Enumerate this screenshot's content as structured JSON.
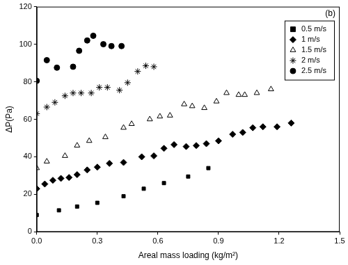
{
  "chart_data": {
    "type": "scatter",
    "annotation": "(b)",
    "x_label": "Areal mass loading (kg/m²)",
    "y_label": "ΔP(Pa)",
    "xlim": [
      0,
      1.5
    ],
    "xticks": [
      {
        "value": 0,
        "label": "0.0"
      },
      0.3,
      0.6,
      0.9,
      1.2,
      1.5
    ],
    "ylim": [
      0,
      120
    ],
    "yticks": [
      0,
      20,
      40,
      60,
      80,
      100,
      120
    ],
    "grid": false,
    "legend": "upper right",
    "series": [
      {
        "name": "0.5 m/s",
        "color": "#000000",
        "marker": "square",
        "x": [
          0.0,
          0.11,
          0.2,
          0.3,
          0.43,
          0.53,
          0.63,
          0.75,
          0.85
        ],
        "values": [
          9,
          11.5,
          13.5,
          15.5,
          19,
          23,
          26,
          29.5,
          34
        ]
      },
      {
        "name": "1 m/s",
        "color": "#000000",
        "marker": "diamond",
        "x": [
          0.0,
          0.04,
          0.08,
          0.12,
          0.16,
          0.2,
          0.25,
          0.3,
          0.36,
          0.43,
          0.52,
          0.58,
          0.63,
          0.68,
          0.74,
          0.79,
          0.84,
          0.9,
          0.97,
          1.02,
          1.07,
          1.12,
          1.19,
          1.26
        ],
        "values": [
          23,
          25.5,
          27.5,
          28.5,
          29,
          30.5,
          33,
          34.5,
          36.5,
          37,
          40,
          40.5,
          44.5,
          46.5,
          45.5,
          46,
          47,
          48.5,
          52,
          53,
          55.5,
          56,
          56,
          58
        ]
      },
      {
        "name": "1.5 m/s",
        "color": "#000000",
        "marker": "triangle-open",
        "x": [
          0.0,
          0.05,
          0.14,
          0.2,
          0.26,
          0.34,
          0.43,
          0.47,
          0.56,
          0.61,
          0.66,
          0.73,
          0.77,
          0.83,
          0.89,
          0.94,
          1.0,
          1.03,
          1.09,
          1.16
        ],
        "values": [
          34,
          37.5,
          40.5,
          46,
          48.5,
          50.5,
          55.5,
          57.5,
          60,
          61.5,
          62,
          68,
          67,
          66,
          69.5,
          74,
          73,
          73,
          74,
          76
        ]
      },
      {
        "name": "2 m/s",
        "color": "#000000",
        "marker": "asterisk",
        "x": [
          0.0,
          0.05,
          0.09,
          0.14,
          0.18,
          0.22,
          0.27,
          0.31,
          0.35,
          0.41,
          0.45,
          0.5,
          0.54,
          0.58
        ],
        "values": [
          63,
          66.5,
          69,
          72.5,
          74,
          74,
          74,
          77,
          77,
          75.5,
          79.5,
          85.5,
          88.5,
          88
        ]
      },
      {
        "name": "2.5 m/s",
        "color": "#000000",
        "marker": "circle",
        "x": [
          0.0,
          0.05,
          0.1,
          0.18,
          0.21,
          0.25,
          0.28,
          0.33,
          0.37,
          0.42
        ],
        "values": [
          80.5,
          91.5,
          87.5,
          88,
          96.5,
          102,
          104.5,
          100,
          99,
          99
        ]
      }
    ]
  }
}
